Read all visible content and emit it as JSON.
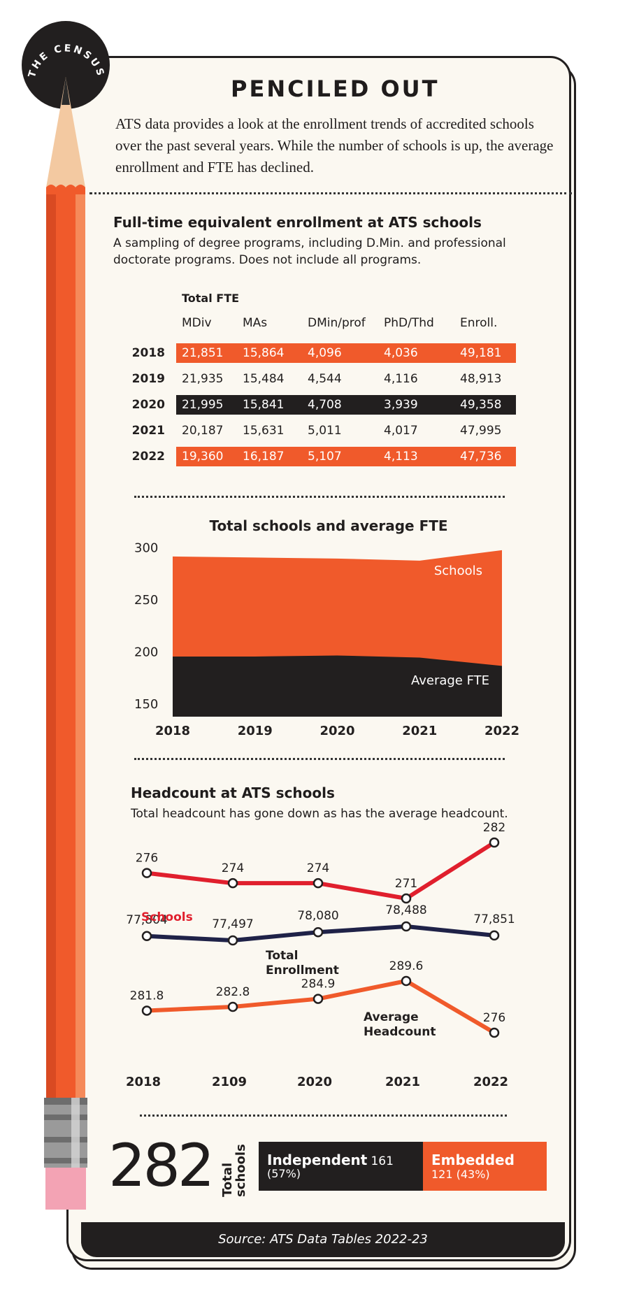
{
  "badge": {
    "text": "THE CENSUS"
  },
  "header": {
    "title": "PENCILED OUT",
    "intro": "ATS data provides a look at the enrollment trends of accredited schools over the past several years. While the number of schools is up, the average enrollment and FTE has declined."
  },
  "fte_table": {
    "title": "Full-time equivalent enrollment at ATS schools",
    "subtitle": "A sampling of degree programs, including D.Min. and professional doctorate programs. Does not include all programs.",
    "group_label": "Total FTE",
    "columns": [
      "MDiv",
      "MAs",
      "DMin/prof",
      "PhD/Thd",
      "Enroll."
    ],
    "rows": [
      {
        "year": "2018",
        "values": [
          "21,851",
          "15,864",
          "4,096",
          "4,036",
          "49,181"
        ],
        "style": "orange"
      },
      {
        "year": "2019",
        "values": [
          "21,935",
          "15,484",
          "4,544",
          "4,116",
          "48,913"
        ],
        "style": "plain"
      },
      {
        "year": "2020",
        "values": [
          "21,995",
          "15,841",
          "4,708",
          "3,939",
          "49,358"
        ],
        "style": "black"
      },
      {
        "year": "2021",
        "values": [
          "20,187",
          "15,631",
          "5,011",
          "4,017",
          "47,995"
        ],
        "style": "plain"
      },
      {
        "year": "2022",
        "values": [
          "19,360",
          "16,187",
          "5,107",
          "4,113",
          "47,736"
        ],
        "style": "orange"
      }
    ]
  },
  "chart_data": [
    {
      "type": "area",
      "title": "Total schools and average FTE",
      "categories": [
        "2018",
        "2019",
        "2020",
        "2021",
        "2022"
      ],
      "yticks": [
        "300",
        "250",
        "200",
        "150"
      ],
      "ylim": [
        140,
        305
      ],
      "series": [
        {
          "name": "Schools",
          "values": [
            291,
            290,
            289,
            287,
            297
          ]
        },
        {
          "name": "Average FTE",
          "values": [
            195,
            195,
            196,
            194,
            186
          ]
        }
      ]
    },
    {
      "type": "line",
      "title": "Headcount at ATS schools",
      "subtitle": "Total headcount has gone down as has the average headcount.",
      "categories": [
        "2018",
        "2109",
        "2020",
        "2021",
        "2022"
      ],
      "series": [
        {
          "name": "Schools",
          "values": [
            276,
            274,
            274,
            271,
            282
          ],
          "labels": [
            "276",
            "274",
            "274",
            "271",
            "282"
          ]
        },
        {
          "name": "Total Enrollment",
          "values": [
            77804,
            77497,
            78080,
            78488,
            77851
          ],
          "labels": [
            "77,804",
            "77,497",
            "78,080",
            "78,488",
            "77,851"
          ]
        },
        {
          "name": "Average Headcount",
          "values": [
            281.8,
            282.8,
            284.9,
            289.6,
            276
          ],
          "labels": [
            "281.8",
            "282.8",
            "284.9",
            "289.6",
            "276"
          ]
        }
      ],
      "series_labels": {
        "schools": "Schools",
        "enroll_1": "Total",
        "enroll_2": "Enrollment",
        "avg_1": "Average",
        "avg_2": "Headcount"
      }
    }
  ],
  "total": {
    "number": "282",
    "label_1": "Total",
    "label_2": "schools",
    "independent_name": "Independent",
    "independent_count": "161",
    "independent_pct": "(57%)",
    "embedded_name": "Embedded",
    "embedded_detail": "121 (43%)",
    "independent_share": 57
  },
  "footer": {
    "source": "Source: ATS Data Tables 2022-23"
  },
  "colors": {
    "orange": "#f05a2b",
    "black": "#221f1f",
    "red": "#e01f2d",
    "navy": "#1f2248",
    "pink": "#f3a3b4"
  }
}
